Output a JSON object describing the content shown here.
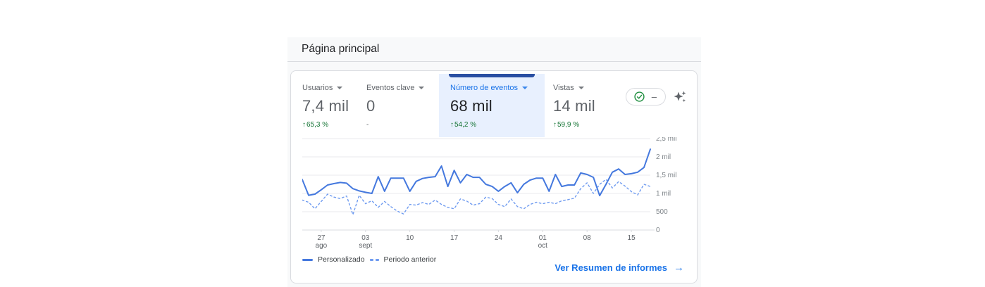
{
  "page": {
    "title": "Página principal"
  },
  "metrics": {
    "tabs": [
      {
        "label": "Usuarios",
        "value": "7,4 mil",
        "delta": "65,3 %",
        "delta_dir": "up",
        "selected": false
      },
      {
        "label": "Eventos clave",
        "value": "0",
        "delta": "-",
        "delta_dir": "none",
        "selected": false
      },
      {
        "label": "Número de eventos",
        "value": "68 mil",
        "delta": "54,2 %",
        "delta_dir": "up",
        "selected": true
      },
      {
        "label": "Vistas",
        "value": "14 mil",
        "delta": "59,9 %",
        "delta_dir": "up",
        "selected": false
      }
    ],
    "quality_button": {
      "icon": "data-quality-check-circle",
      "dash": "–"
    },
    "insights_icon": "sparkle-stars"
  },
  "chart_data": {
    "type": "line",
    "grid": true,
    "y_axis_side": "right",
    "legend_position": "bottom-left",
    "ylim": [
      0,
      2500
    ],
    "y_ticks": [
      {
        "value": 2500,
        "label": "2,5 mil"
      },
      {
        "value": 2000,
        "label": "2 mil"
      },
      {
        "value": 1500,
        "label": "1,5 mil"
      },
      {
        "value": 1000,
        "label": "1 mil"
      },
      {
        "value": 500,
        "label": "500"
      },
      {
        "value": 0,
        "label": "0"
      }
    ],
    "x_ticks": [
      {
        "index": 3,
        "top": "27",
        "bottom": "ago"
      },
      {
        "index": 10,
        "top": "03",
        "bottom": "sept"
      },
      {
        "index": 17,
        "top": "10",
        "bottom": ""
      },
      {
        "index": 24,
        "top": "17",
        "bottom": ""
      },
      {
        "index": 31,
        "top": "24",
        "bottom": ""
      },
      {
        "index": 38,
        "top": "01",
        "bottom": "oct"
      },
      {
        "index": 45,
        "top": "08",
        "bottom": ""
      },
      {
        "index": 52,
        "top": "15",
        "bottom": ""
      }
    ],
    "series": [
      {
        "name": "Personalizado",
        "style": "solid",
        "color": "#4478de",
        "values": [
          1380,
          950,
          980,
          1100,
          1230,
          1270,
          1300,
          1280,
          1130,
          1070,
          1030,
          1000,
          1460,
          1060,
          1420,
          1420,
          1420,
          1060,
          1330,
          1410,
          1440,
          1460,
          1750,
          1190,
          1630,
          1290,
          1520,
          1440,
          1440,
          1250,
          1190,
          1060,
          1190,
          1290,
          1020,
          1250,
          1365,
          1420,
          1420,
          1060,
          1520,
          1190,
          1230,
          1230,
          1560,
          1520,
          1440,
          940,
          1250,
          1580,
          1670,
          1520,
          1540,
          1580,
          1710,
          2210
        ]
      },
      {
        "name": "Periodo anterior",
        "style": "dashed",
        "color": "#6f9bf0",
        "values": [
          820,
          760,
          580,
          780,
          980,
          900,
          860,
          930,
          420,
          950,
          720,
          800,
          620,
          780,
          640,
          520,
          440,
          700,
          680,
          750,
          700,
          820,
          700,
          620,
          580,
          850,
          790,
          680,
          720,
          900,
          860,
          700,
          640,
          850,
          640,
          580,
          700,
          760,
          720,
          760,
          720,
          800,
          830,
          870,
          1130,
          1290,
          1000,
          1250,
          1385,
          1150,
          1325,
          1200,
          1050,
          960,
          1250,
          1190
        ]
      }
    ]
  },
  "footer": {
    "link": "Ver Resumen de informes",
    "arrow": "→"
  },
  "colors": {
    "accent_blue": "#1a73e8",
    "selected_tab_bg": "#e8f0fe",
    "selected_tab_indicator": "#2a4fa2",
    "positive_green": "#137333",
    "series_solid": "#4478de",
    "series_dashed": "#6f9bf0",
    "panel_bg": "#f8f9fa",
    "border": "#dadce0"
  }
}
